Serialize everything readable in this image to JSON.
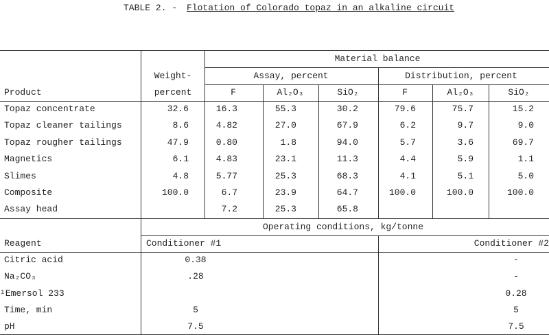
{
  "title": {
    "label": "TABLE 2. -",
    "text": "Flotation of Colorado topaz in an alkaline circuit"
  },
  "header": {
    "group": "Material balance",
    "weight_line1": "Weight-",
    "weight_line2": "percent",
    "assay": "Assay, percent",
    "distribution": "Distribution, percent",
    "product": "Product",
    "columns": [
      "F",
      "Al₂O₃",
      "SiO₂",
      "F",
      "Al₂O₃",
      "SiO₂"
    ]
  },
  "rows": [
    [
      "Topaz concentrate",
      "32.6",
      "16.3",
      "55.3",
      "30.2",
      "79.6",
      "75.7",
      "15.2"
    ],
    [
      "Topaz cleaner tailings",
      "8.6",
      "4.82",
      "27.0",
      "67.9",
      "6.2",
      "9.7",
      "9.0"
    ],
    [
      "Topaz rougher tailings",
      "47.9",
      "0.80",
      "1.8",
      "94.0",
      "5.7",
      "3.6",
      "69.7"
    ],
    [
      "Magnetics",
      "6.1",
      "4.83",
      "23.1",
      "11.3",
      "4.4",
      "5.9",
      "1.1"
    ],
    [
      "Slimes",
      "4.8",
      "5.77",
      "25.3",
      "68.3",
      "4.1",
      "5.1",
      "5.0"
    ],
    [
      "Composite",
      "100.0",
      "6.7",
      "23.9",
      "64.7",
      "100.0",
      "100.0",
      "100.0"
    ],
    [
      "Assay head",
      null,
      "7.2",
      "25.3",
      "65.8",
      null,
      null,
      null
    ]
  ],
  "conditions": {
    "title": "Operating conditions, kg/tonne",
    "reagent": "Reagent",
    "columns": [
      "Conditioner #1",
      "Conditioner #2"
    ],
    "rows": [
      [
        "Citric acid",
        "0.38",
        "-"
      ],
      [
        "Na₂CO₃",
        ".28",
        "-"
      ],
      [
        "¹Emersol 233",
        null,
        "0.28"
      ],
      [
        "Time, min",
        "5",
        "5"
      ],
      [
        "pH",
        "7.5",
        "7.5"
      ]
    ]
  }
}
